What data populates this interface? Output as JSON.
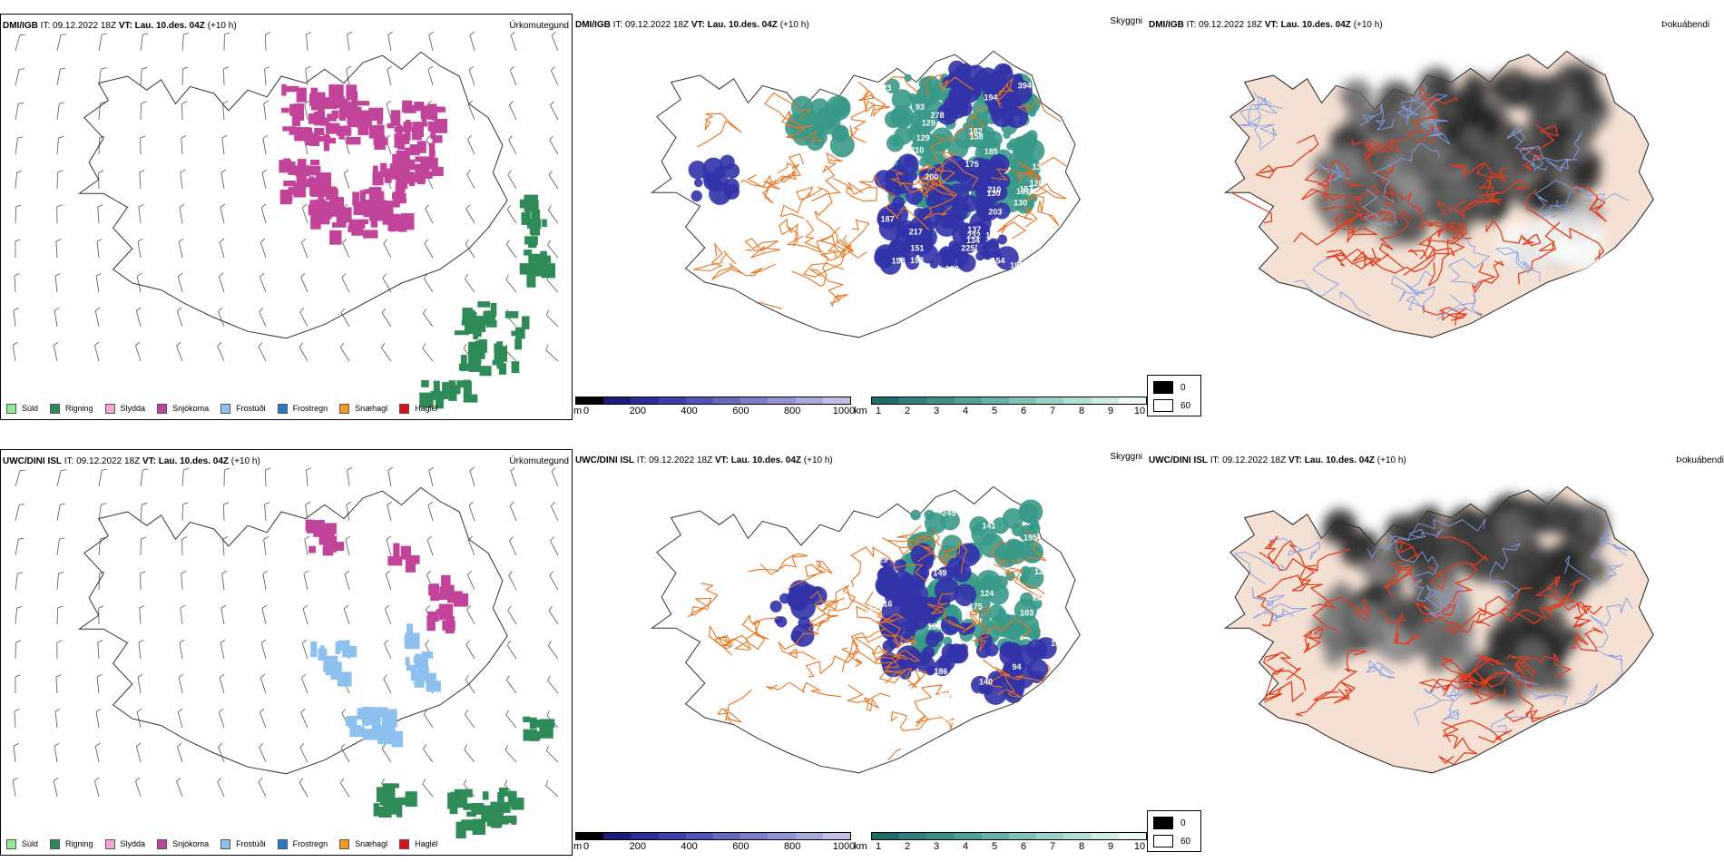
{
  "rows": [
    {
      "model": "DMI/IGB",
      "it_label": "IT:",
      "it_value": "09.12.2022 18Z",
      "vt_label": "VT:",
      "vt_value": "Lau. 10.des. 04Z",
      "lead": "(+10 h)",
      "precip_title": "Úrkomutegund",
      "vis_title": "Skyggni",
      "fog_title": "Þokuábendi",
      "vis_numbers": [
        "268",
        "130",
        "157",
        "278",
        "210",
        "193",
        "122",
        "130",
        "210",
        "217",
        "158",
        "394",
        "142",
        "175",
        "134",
        "194",
        "185",
        "129",
        "252",
        "143",
        "232",
        "200",
        "93",
        "126",
        "189",
        "229",
        "120",
        "225",
        "137",
        "158",
        "151",
        "203",
        "123",
        "134",
        "129",
        "182",
        "154",
        "101",
        "187",
        "183",
        "158"
      ]
    },
    {
      "model": "UWC/DINI ISL",
      "it_label": "IT:",
      "it_value": "09.12.2022 18Z",
      "vt_label": "VT:",
      "vt_value": "Lau. 10.des. 04Z",
      "lead": "(+10 h)",
      "precip_title": "Úrkomutegund",
      "vis_title": "Skyggni",
      "fog_title": "Þokuábendi",
      "vis_numbers": [
        "133",
        "245",
        "186",
        "145",
        "127",
        "124",
        "103",
        "195",
        "108",
        "140",
        "116",
        "212",
        "141",
        "152",
        "178",
        "110",
        "153",
        "175",
        "149",
        "94",
        "129"
      ]
    }
  ],
  "precip_legend": [
    {
      "label": "Súld",
      "color": "#90ee90"
    },
    {
      "label": "Rigning",
      "color": "#2e8b57"
    },
    {
      "label": "Slydda",
      "color": "#f4a6d7"
    },
    {
      "label": "Snjókoma",
      "color": "#c2449a"
    },
    {
      "label": "Frostúði",
      "color": "#8ec1f0"
    },
    {
      "label": "Frostregn",
      "color": "#2a78c8"
    },
    {
      "label": "Snæhagl",
      "color": "#f39a1e"
    },
    {
      "label": "Haglél",
      "color": "#e01010"
    }
  ],
  "height_bar": {
    "unit": "m",
    "ticks": [
      "0",
      "200",
      "400",
      "600",
      "800",
      "1000"
    ],
    "colors": [
      "#000000",
      "#1c1c7a",
      "#2d2d9a",
      "#3e3eaa",
      "#5252b4",
      "#6868be",
      "#7e7ec8",
      "#9494d2",
      "#aaaadc",
      "#c0c0e6"
    ]
  },
  "vis_bar": {
    "unit": "km",
    "ticks": [
      "1",
      "2",
      "3",
      "4",
      "5",
      "6",
      "7",
      "8",
      "9",
      "10"
    ],
    "colors": [
      "#1c6e6a",
      "#2a807a",
      "#3a928a",
      "#4fa298",
      "#66b2a8",
      "#80c2b8",
      "#9ad0c6",
      "#b4ded6",
      "#d0ece6",
      "#eef8f6"
    ]
  },
  "fog_legend": [
    {
      "label": "0",
      "color": "#000000"
    },
    {
      "label": "60",
      "color": "#ffffff"
    }
  ],
  "colors": {
    "land": "#f5e1d4",
    "road_orange": "#e8731d",
    "road_red": "#e43c1c",
    "river_blue": "#7d9ee8",
    "teal": "#3a9a8a",
    "indigo": "#3232a8",
    "snow": "#c2449a",
    "rain": "#2e8b57",
    "frostdrizzle": "#8ec1f0"
  }
}
